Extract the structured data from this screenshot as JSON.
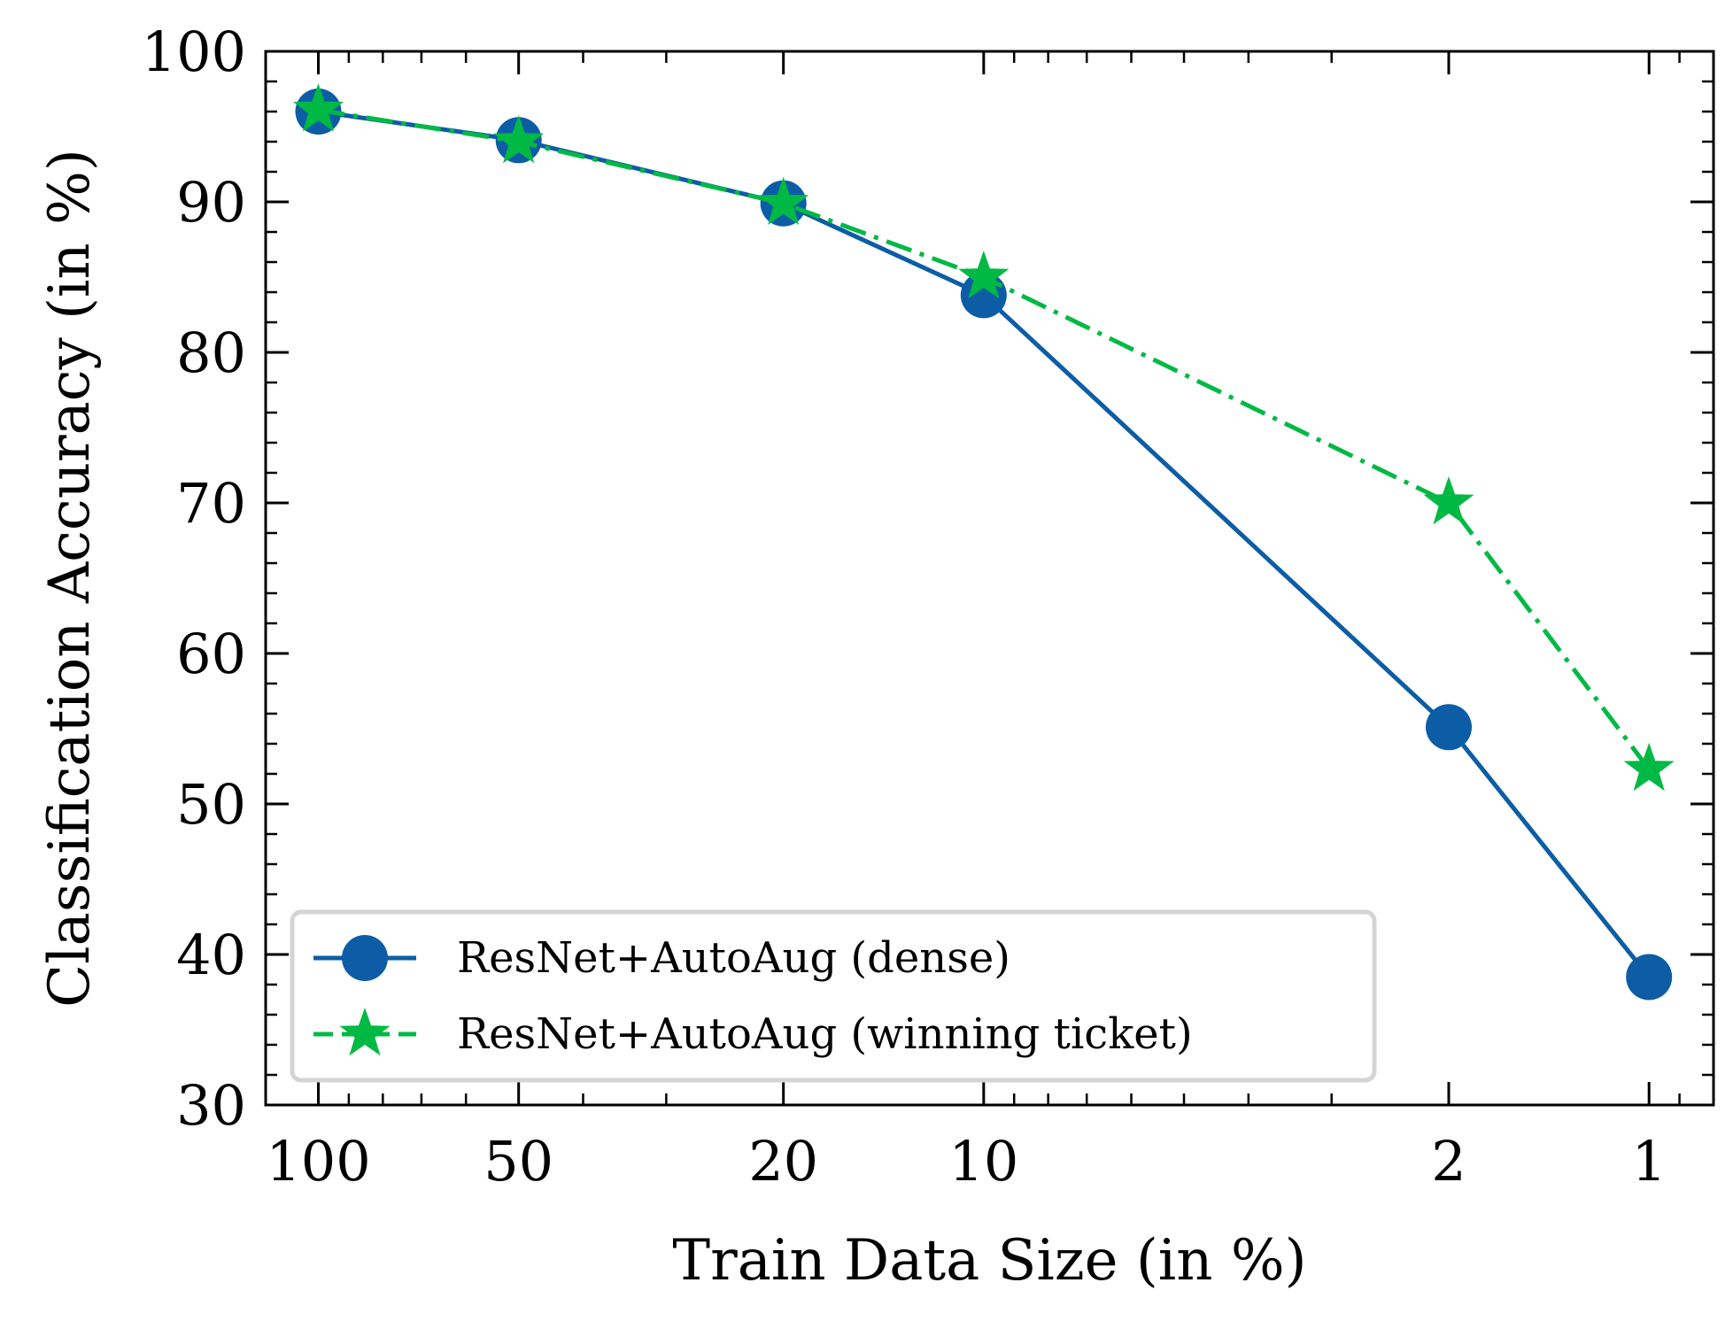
{
  "chart_data": {
    "type": "line",
    "xlabel": "Train Data Size (in %)",
    "ylabel": "Classification Accuracy (in %)",
    "x_scale": "log",
    "x_reversed": true,
    "xlim": [
      120,
      0.8
    ],
    "ylim": [
      30,
      100
    ],
    "x_ticks": [
      100,
      50,
      20,
      10,
      2,
      1
    ],
    "x_tick_labels": [
      "100",
      "50",
      "20",
      "10",
      "2",
      "1"
    ],
    "y_ticks": [
      30,
      40,
      50,
      60,
      70,
      80,
      90,
      100
    ],
    "y_tick_labels": [
      "30",
      "40",
      "50",
      "60",
      "70",
      "80",
      "90",
      "100"
    ],
    "grid": false,
    "legend_position": "lower-left",
    "series": [
      {
        "name": "ResNet+AutoAug (dense)",
        "color": "#0C5DA5",
        "marker": "circle",
        "line_style": "solid",
        "x": [
          100,
          50,
          20,
          10,
          2,
          1
        ],
        "y": [
          96.0,
          94.1,
          89.9,
          83.8,
          55.1,
          38.5
        ]
      },
      {
        "name": "ResNet+AutoAug (winning ticket)",
        "color": "#00B945",
        "marker": "star",
        "line_style": "dash-dot",
        "x": [
          100,
          50,
          20,
          10,
          2,
          1
        ],
        "y": [
          96.1,
          94.0,
          89.9,
          85.0,
          70.0,
          52.3
        ]
      }
    ]
  }
}
